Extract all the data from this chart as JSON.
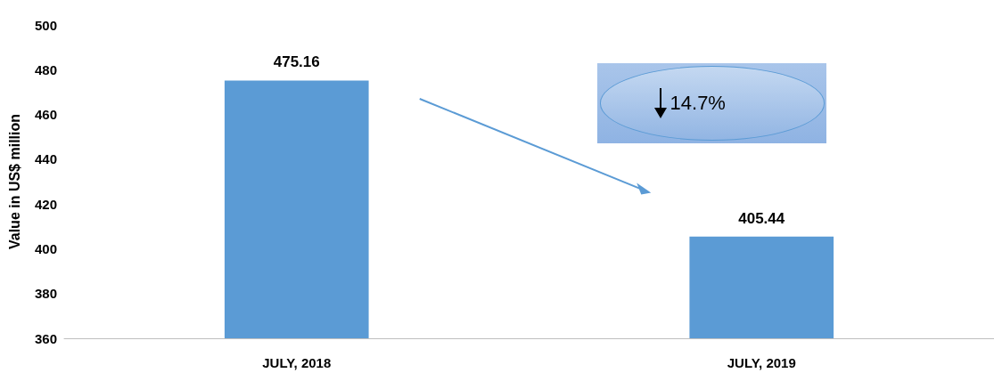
{
  "chart_data": {
    "type": "bar",
    "ylabel": "Value in US$ million",
    "categories": [
      "JULY, 2018",
      "JULY, 2019"
    ],
    "values": [
      475.16,
      405.44
    ],
    "color": "#5b9bd5",
    "ylim": [
      360,
      500
    ],
    "yticks": [
      360,
      380,
      400,
      420,
      440,
      460,
      480,
      500
    ],
    "grid": false,
    "data_labels": true,
    "annotations": [
      "14.7%"
    ]
  }
}
